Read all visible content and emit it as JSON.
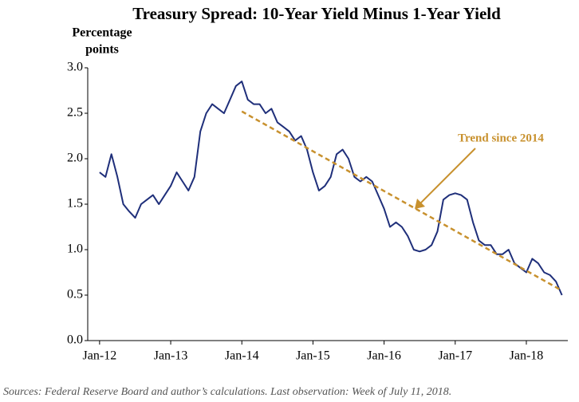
{
  "chart_data": {
    "type": "line",
    "title": "Treasury Spread: 10-Year Yield Minus 1-Year Yield",
    "ylabel": [
      "Percentage",
      "points"
    ],
    "source": "Sources: Federal Reserve Board and author’s calculations. Last observation: Week of July 11, 2018.",
    "x": [
      "2012-01",
      "2012-02",
      "2012-03",
      "2012-04",
      "2012-05",
      "2012-06",
      "2012-07",
      "2012-08",
      "2012-09",
      "2012-10",
      "2012-11",
      "2012-12",
      "2013-01",
      "2013-02",
      "2013-03",
      "2013-04",
      "2013-05",
      "2013-06",
      "2013-07",
      "2013-08",
      "2013-09",
      "2013-10",
      "2013-11",
      "2013-12",
      "2014-01",
      "2014-02",
      "2014-03",
      "2014-04",
      "2014-05",
      "2014-06",
      "2014-07",
      "2014-08",
      "2014-09",
      "2014-10",
      "2014-11",
      "2014-12",
      "2015-01",
      "2015-02",
      "2015-03",
      "2015-04",
      "2015-05",
      "2015-06",
      "2015-07",
      "2015-08",
      "2015-09",
      "2015-10",
      "2015-11",
      "2015-12",
      "2016-01",
      "2016-02",
      "2016-03",
      "2016-04",
      "2016-05",
      "2016-06",
      "2016-07",
      "2016-08",
      "2016-09",
      "2016-10",
      "2016-11",
      "2016-12",
      "2017-01",
      "2017-02",
      "2017-03",
      "2017-04",
      "2017-05",
      "2017-06",
      "2017-07",
      "2017-08",
      "2017-09",
      "2017-10",
      "2017-11",
      "2017-12",
      "2018-01",
      "2018-02",
      "2018-03",
      "2018-04",
      "2018-05",
      "2018-06",
      "2018-07"
    ],
    "series": [
      {
        "name": "Treasury spread",
        "color": "#1f2f7a",
        "values": [
          1.85,
          1.8,
          2.05,
          1.8,
          1.5,
          1.42,
          1.35,
          1.5,
          1.55,
          1.6,
          1.5,
          1.6,
          1.7,
          1.85,
          1.75,
          1.65,
          1.8,
          2.3,
          2.5,
          2.6,
          2.55,
          2.5,
          2.65,
          2.8,
          2.85,
          2.65,
          2.6,
          2.6,
          2.5,
          2.55,
          2.4,
          2.35,
          2.3,
          2.2,
          2.25,
          2.1,
          1.85,
          1.65,
          1.7,
          1.8,
          2.05,
          2.1,
          2.0,
          1.8,
          1.75,
          1.8,
          1.75,
          1.6,
          1.45,
          1.25,
          1.3,
          1.25,
          1.15,
          1.0,
          0.98,
          1.0,
          1.05,
          1.2,
          1.55,
          1.6,
          1.62,
          1.6,
          1.55,
          1.3,
          1.1,
          1.05,
          1.05,
          0.95,
          0.95,
          1.0,
          0.85,
          0.8,
          0.75,
          0.9,
          0.85,
          0.75,
          0.72,
          0.65,
          0.5
        ]
      }
    ],
    "trend": {
      "label": "Trend since 2014",
      "color": "#c8912e",
      "x": [
        "2014-01",
        "2018-07"
      ],
      "values": [
        2.52,
        0.55
      ]
    },
    "xlim": [
      "2011-11",
      "2018-08"
    ],
    "xticks": [
      {
        "value": "2012-01",
        "label": "Jan-12"
      },
      {
        "value": "2013-01",
        "label": "Jan-13"
      },
      {
        "value": "2014-01",
        "label": "Jan-14"
      },
      {
        "value": "2015-01",
        "label": "Jan-15"
      },
      {
        "value": "2016-01",
        "label": "Jan-16"
      },
      {
        "value": "2017-01",
        "label": "Jan-17"
      },
      {
        "value": "2018-01",
        "label": "Jan-18"
      }
    ],
    "ylim": [
      0,
      3
    ],
    "yticks": [
      {
        "value": 0,
        "label": "0.0"
      },
      0.5,
      {
        "value": 1,
        "label": "1.0"
      },
      1.5,
      {
        "value": 2,
        "label": "2.0"
      },
      2.5,
      {
        "value": 3,
        "label": "3.0"
      }
    ]
  }
}
